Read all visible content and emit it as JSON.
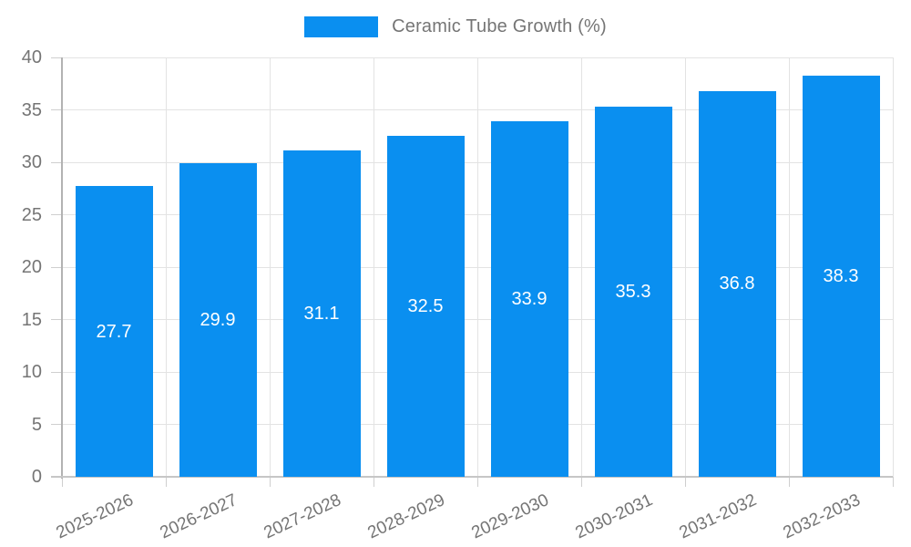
{
  "chart_data": {
    "type": "bar",
    "title": "Ceramic Tube Growth (%)",
    "categories": [
      "2025-2026",
      "2026-2027",
      "2027-2028",
      "2028-2029",
      "2029-2030",
      "2030-2031",
      "2031-2032",
      "2032-2033"
    ],
    "values": [
      27.7,
      29.9,
      31.1,
      32.5,
      33.9,
      35.3,
      36.8,
      38.3
    ],
    "value_labels": [
      "27.7",
      "29.9",
      "31.1",
      "32.5",
      "33.9",
      "35.3",
      "36.8",
      "38.3"
    ],
    "xlabel": "",
    "ylabel": "",
    "ylim": [
      0,
      40
    ],
    "y_ticks": [
      0,
      5,
      10,
      15,
      20,
      25,
      30,
      35,
      40
    ],
    "grid": true,
    "legend_position": "top",
    "colors": {
      "bar": "#0a8ff0",
      "grid": "#e3e3e3",
      "axis_text": "#757575",
      "value_text": "#ffffff",
      "legend_text": "#757575"
    }
  }
}
